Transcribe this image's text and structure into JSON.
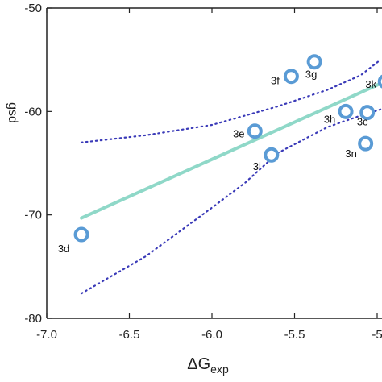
{
  "chart_data": {
    "type": "scatter",
    "xlabel_main": "ΔG",
    "xlabel_sub": "exp",
    "ylabel": "gsd",
    "xlim": [
      -7.0,
      -5.0
    ],
    "ylim": [
      -80,
      -50
    ],
    "x_ticks": [
      -7.0,
      -6.5,
      -6.0,
      -5.5,
      -5.0
    ],
    "x_tick_labels": [
      "-7.0",
      "-6.5",
      "-6.0",
      "-5.5",
      "-5"
    ],
    "y_ticks": [
      -80,
      -70,
      -60,
      -50
    ],
    "y_tick_labels": [
      "-80",
      "-70",
      "-60",
      "-50"
    ],
    "grid": false,
    "colors": {
      "points": "#5a9bd5",
      "fit": "#8fd8c8",
      "ci": "#3a3ab8",
      "axis": "#222222"
    },
    "points": [
      {
        "label": "3d",
        "x": -6.79,
        "y": -71.9
      },
      {
        "label": "3e",
        "x": -5.74,
        "y": -61.9
      },
      {
        "label": "3i",
        "x": -5.64,
        "y": -64.2
      },
      {
        "label": "3f",
        "x": -5.52,
        "y": -56.6
      },
      {
        "label": "3g",
        "x": -5.38,
        "y": -55.2
      },
      {
        "label": "3h",
        "x": -5.19,
        "y": -60.0
      },
      {
        "label": "3c",
        "x": -5.06,
        "y": -60.1
      },
      {
        "label": "3n",
        "x": -5.07,
        "y": -63.1
      },
      {
        "label": "3k",
        "x": -4.95,
        "y": -57.1
      }
    ],
    "fit_line": {
      "x": [
        -6.79,
        -4.98
      ],
      "y": [
        -70.3,
        -57.3
      ]
    },
    "ci_upper": {
      "x": [
        -6.79,
        -6.4,
        -6.0,
        -5.6,
        -5.3,
        -5.1,
        -4.98
      ],
      "y": [
        -63.0,
        -62.3,
        -61.3,
        -59.5,
        -57.9,
        -56.5,
        -55.0
      ]
    },
    "ci_lower": {
      "x": [
        -6.79,
        -6.4,
        -6.0,
        -5.8,
        -5.6,
        -5.3,
        -5.1,
        -4.98
      ],
      "y": [
        -77.6,
        -74.0,
        -69.3,
        -66.9,
        -64.0,
        -61.5,
        -60.4,
        -59.8
      ]
    }
  }
}
